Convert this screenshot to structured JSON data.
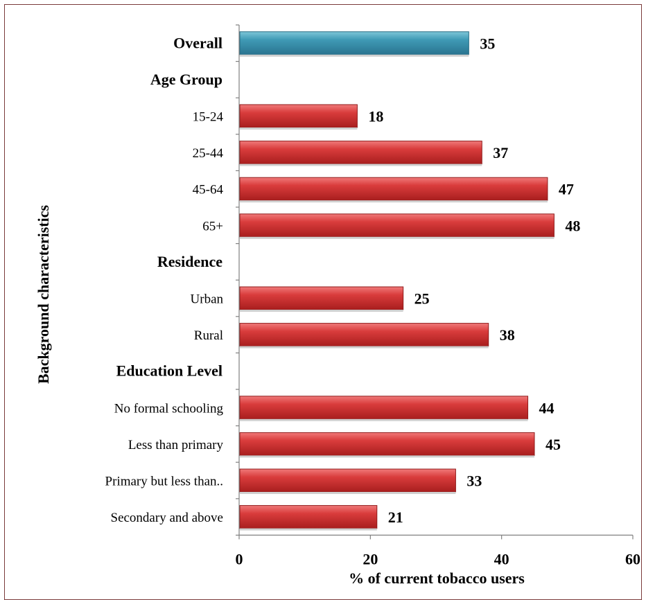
{
  "chart_data": {
    "type": "bar",
    "orientation": "horizontal",
    "xlabel": "% of current tobacco users",
    "ylabel": "Background characteristics",
    "xlim": [
      0,
      60
    ],
    "xticks": [
      "0",
      "20",
      "40",
      "60"
    ],
    "grid": false,
    "colors": {
      "overall": "#4aa0b8",
      "group": "#d23a3a"
    },
    "rows": [
      {
        "label": "Overall",
        "value": 35,
        "value_label": "35",
        "kind": "overall"
      },
      {
        "label": "Age Group",
        "kind": "header"
      },
      {
        "label": "15-24",
        "value": 18,
        "value_label": "18",
        "kind": "bar"
      },
      {
        "label": "25-44",
        "value": 37,
        "value_label": "37",
        "kind": "bar"
      },
      {
        "label": "45-64",
        "value": 47,
        "value_label": "47",
        "kind": "bar"
      },
      {
        "label": "65+",
        "value": 48,
        "value_label": "48",
        "kind": "bar"
      },
      {
        "label": "Residence",
        "kind": "header"
      },
      {
        "label": "Urban",
        "value": 25,
        "value_label": "25",
        "kind": "bar"
      },
      {
        "label": "Rural",
        "value": 38,
        "value_label": "38",
        "kind": "bar"
      },
      {
        "label": "Education Level",
        "kind": "header"
      },
      {
        "label": "No formal schooling",
        "value": 44,
        "value_label": "44",
        "kind": "bar"
      },
      {
        "label": "Less than primary",
        "value": 45,
        "value_label": "45",
        "kind": "bar"
      },
      {
        "label": "Primary but less than..",
        "value": 33,
        "value_label": "33",
        "kind": "bar"
      },
      {
        "label": "Secondary and above",
        "value": 21,
        "value_label": "21",
        "kind": "bar"
      }
    ]
  }
}
